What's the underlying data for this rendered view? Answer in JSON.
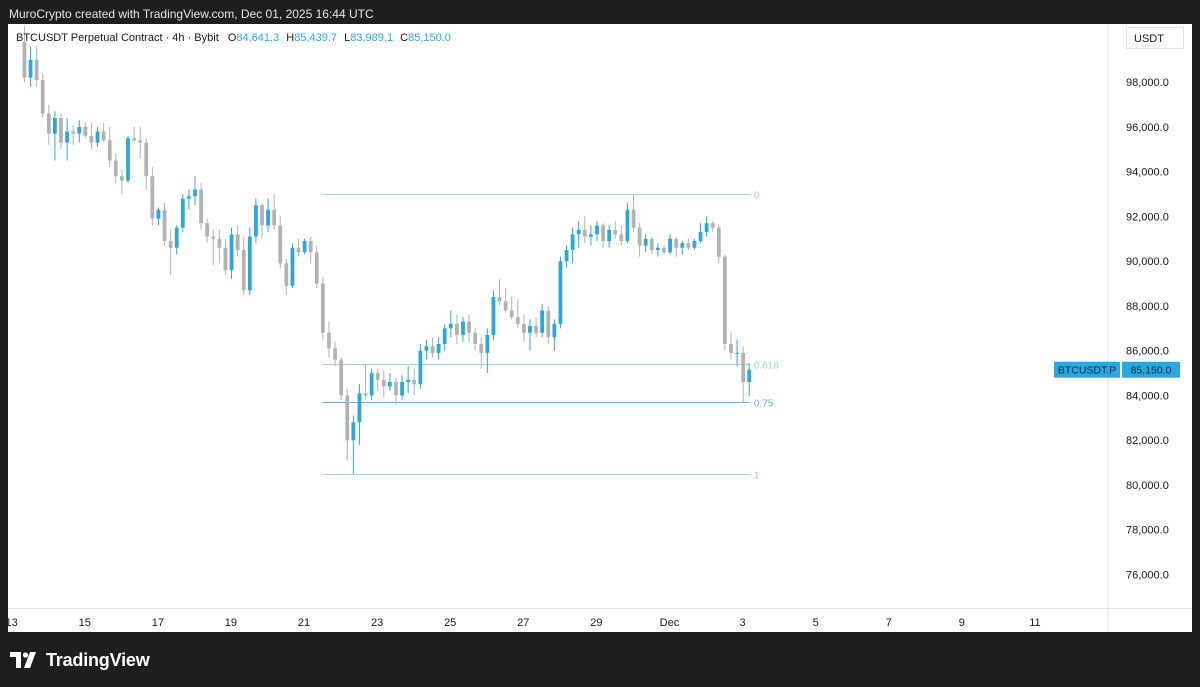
{
  "header": {
    "credit": "MuroCrypto created with TradingView.com, Dec 01, 2025 16:44 UTC"
  },
  "legend": {
    "symbol": "BTCUSDT Perpetual Contract · 4h · Bybit",
    "o_label": "O",
    "o_value": "84,641.3",
    "h_label": "H",
    "h_value": "85,439.7",
    "l_label": "L",
    "l_value": "83,989.1",
    "c_label": "C",
    "c_value": "85,150.0"
  },
  "currency": "USDT",
  "price_tag": {
    "symbol": "BTCUSDT.P",
    "price": "85,150.0"
  },
  "footer": {
    "brand": "TradingView"
  },
  "colors": {
    "up": "#29a8df",
    "down": "#b2b2b2",
    "fib": "#9fd0ec",
    "fib_strong": "#5fb3e0"
  },
  "chart_data": {
    "type": "candlestick",
    "interval": "4h",
    "y_ticks": [
      "98,000.0",
      "96,000.0",
      "94,000.0",
      "92,000.0",
      "90,000.0",
      "88,000.0",
      "86,000.0",
      "84,000.0",
      "82,000.0",
      "80,000.0",
      "78,000.0",
      "76,000.0"
    ],
    "ylim": [
      74500,
      100600
    ],
    "x_ticks": [
      {
        "label": "13",
        "day": 13
      },
      {
        "label": "15",
        "day": 15
      },
      {
        "label": "17",
        "day": 17
      },
      {
        "label": "19",
        "day": 19
      },
      {
        "label": "21",
        "day": 21
      },
      {
        "label": "23",
        "day": 23
      },
      {
        "label": "25",
        "day": 25
      },
      {
        "label": "27",
        "day": 27
      },
      {
        "label": "29",
        "day": 29
      },
      {
        "label": "Dec",
        "day": 31
      },
      {
        "label": "3",
        "day": 33
      },
      {
        "label": "5",
        "day": 35
      },
      {
        "label": "7",
        "day": 37
      },
      {
        "label": "9",
        "day": 39
      },
      {
        "label": "11",
        "day": 41
      }
    ],
    "xlim_days": [
      12.9,
      43.0
    ],
    "fib_levels": [
      {
        "label": "0",
        "price": 93000,
        "from_day": 21.5,
        "to_day": 33.2
      },
      {
        "label": "0.618",
        "price": 85400,
        "from_day": 21.5,
        "to_day": 33.2
      },
      {
        "label": "0.75",
        "price": 83700,
        "from_day": 21.5,
        "to_day": 33.2
      },
      {
        "label": "1",
        "price": 80500,
        "from_day": 21.5,
        "to_day": 33.2
      }
    ],
    "candles": [
      {
        "o": 99800,
        "h": 100500,
        "l": 98000,
        "c": 98200
      },
      {
        "o": 98200,
        "h": 99600,
        "l": 97800,
        "c": 99000
      },
      {
        "o": 99000,
        "h": 99600,
        "l": 97800,
        "c": 98100
      },
      {
        "o": 98100,
        "h": 98400,
        "l": 96400,
        "c": 96600
      },
      {
        "o": 96600,
        "h": 97000,
        "l": 95200,
        "c": 95700
      },
      {
        "o": 95700,
        "h": 96700,
        "l": 94500,
        "c": 96400
      },
      {
        "o": 96400,
        "h": 96600,
        "l": 95000,
        "c": 95300
      },
      {
        "o": 95300,
        "h": 96400,
        "l": 94500,
        "c": 95800
      },
      {
        "o": 95800,
        "h": 96100,
        "l": 95200,
        "c": 95700
      },
      {
        "o": 95700,
        "h": 96300,
        "l": 95300,
        "c": 96000
      },
      {
        "o": 96000,
        "h": 96200,
        "l": 95500,
        "c": 95600
      },
      {
        "o": 95600,
        "h": 96200,
        "l": 95000,
        "c": 95300
      },
      {
        "o": 95300,
        "h": 96000,
        "l": 95100,
        "c": 95800
      },
      {
        "o": 95800,
        "h": 96200,
        "l": 95300,
        "c": 95400
      },
      {
        "o": 95400,
        "h": 96000,
        "l": 94200,
        "c": 94500
      },
      {
        "o": 94500,
        "h": 94800,
        "l": 93500,
        "c": 93800
      },
      {
        "o": 93800,
        "h": 94100,
        "l": 93000,
        "c": 93600
      },
      {
        "o": 93600,
        "h": 95600,
        "l": 93500,
        "c": 95500
      },
      {
        "o": 95500,
        "h": 96000,
        "l": 95300,
        "c": 95400
      },
      {
        "o": 95400,
        "h": 96000,
        "l": 94600,
        "c": 95300
      },
      {
        "o": 95300,
        "h": 95500,
        "l": 93200,
        "c": 93800
      },
      {
        "o": 93800,
        "h": 94200,
        "l": 91600,
        "c": 91900
      },
      {
        "o": 91900,
        "h": 92400,
        "l": 91600,
        "c": 92300
      },
      {
        "o": 92300,
        "h": 92600,
        "l": 90700,
        "c": 90900
      },
      {
        "o": 90900,
        "h": 91400,
        "l": 89400,
        "c": 90600
      },
      {
        "o": 90600,
        "h": 91600,
        "l": 90300,
        "c": 91500
      },
      {
        "o": 91500,
        "h": 93000,
        "l": 91300,
        "c": 92800
      },
      {
        "o": 92800,
        "h": 93200,
        "l": 92300,
        "c": 92900
      },
      {
        "o": 92900,
        "h": 93800,
        "l": 92500,
        "c": 93200
      },
      {
        "o": 93200,
        "h": 93500,
        "l": 91400,
        "c": 91700
      },
      {
        "o": 91700,
        "h": 91900,
        "l": 90800,
        "c": 91100
      },
      {
        "o": 91100,
        "h": 91400,
        "l": 89800,
        "c": 91000
      },
      {
        "o": 91000,
        "h": 91400,
        "l": 89900,
        "c": 90600
      },
      {
        "o": 90600,
        "h": 91000,
        "l": 89400,
        "c": 89600
      },
      {
        "o": 89600,
        "h": 91500,
        "l": 89200,
        "c": 91200
      },
      {
        "o": 91200,
        "h": 91600,
        "l": 90200,
        "c": 90500
      },
      {
        "o": 90500,
        "h": 91100,
        "l": 88500,
        "c": 88700
      },
      {
        "o": 88700,
        "h": 91500,
        "l": 88500,
        "c": 91100
      },
      {
        "o": 91100,
        "h": 92800,
        "l": 90800,
        "c": 92500
      },
      {
        "o": 92500,
        "h": 92600,
        "l": 91000,
        "c": 91600
      },
      {
        "o": 91600,
        "h": 92800,
        "l": 91300,
        "c": 92300
      },
      {
        "o": 92300,
        "h": 93000,
        "l": 91400,
        "c": 91600
      },
      {
        "o": 91600,
        "h": 92000,
        "l": 89700,
        "c": 89900
      },
      {
        "o": 89900,
        "h": 90100,
        "l": 88500,
        "c": 88900
      },
      {
        "o": 88900,
        "h": 90800,
        "l": 88800,
        "c": 90600
      },
      {
        "o": 90600,
        "h": 91000,
        "l": 90200,
        "c": 90400
      },
      {
        "o": 90400,
        "h": 91000,
        "l": 90300,
        "c": 90900
      },
      {
        "o": 90900,
        "h": 91100,
        "l": 89900,
        "c": 90400
      },
      {
        "o": 90400,
        "h": 90700,
        "l": 88800,
        "c": 89000
      },
      {
        "o": 89000,
        "h": 89300,
        "l": 86500,
        "c": 86800
      },
      {
        "o": 86800,
        "h": 87300,
        "l": 85700,
        "c": 86100
      },
      {
        "o": 86100,
        "h": 86400,
        "l": 85300,
        "c": 85600
      },
      {
        "o": 85600,
        "h": 85700,
        "l": 83800,
        "c": 84000
      },
      {
        "o": 84000,
        "h": 84300,
        "l": 81100,
        "c": 82000
      },
      {
        "o": 82000,
        "h": 83100,
        "l": 80500,
        "c": 82800
      },
      {
        "o": 82800,
        "h": 84500,
        "l": 81800,
        "c": 84100
      },
      {
        "o": 84100,
        "h": 85400,
        "l": 83800,
        "c": 84000
      },
      {
        "o": 84000,
        "h": 85200,
        "l": 83800,
        "c": 85000
      },
      {
        "o": 85000,
        "h": 85200,
        "l": 84200,
        "c": 84700
      },
      {
        "o": 84700,
        "h": 85100,
        "l": 83900,
        "c": 84400
      },
      {
        "o": 84400,
        "h": 85000,
        "l": 84200,
        "c": 84600
      },
      {
        "o": 84600,
        "h": 84800,
        "l": 83600,
        "c": 84000
      },
      {
        "o": 84000,
        "h": 84900,
        "l": 83800,
        "c": 84600
      },
      {
        "o": 84600,
        "h": 85300,
        "l": 84100,
        "c": 84700
      },
      {
        "o": 84700,
        "h": 85200,
        "l": 84000,
        "c": 84500
      },
      {
        "o": 84500,
        "h": 86300,
        "l": 84300,
        "c": 86000
      },
      {
        "o": 86000,
        "h": 86500,
        "l": 85600,
        "c": 86200
      },
      {
        "o": 86200,
        "h": 86600,
        "l": 85700,
        "c": 85900
      },
      {
        "o": 85900,
        "h": 86600,
        "l": 85600,
        "c": 86300
      },
      {
        "o": 86300,
        "h": 87200,
        "l": 86000,
        "c": 87000
      },
      {
        "o": 87000,
        "h": 87800,
        "l": 86600,
        "c": 87200
      },
      {
        "o": 87200,
        "h": 87600,
        "l": 86300,
        "c": 86700
      },
      {
        "o": 86700,
        "h": 87500,
        "l": 86400,
        "c": 87300
      },
      {
        "o": 87300,
        "h": 87600,
        "l": 86400,
        "c": 86800
      },
      {
        "o": 86800,
        "h": 87000,
        "l": 86000,
        "c": 86300
      },
      {
        "o": 86300,
        "h": 86600,
        "l": 85200,
        "c": 85900
      },
      {
        "o": 85900,
        "h": 87000,
        "l": 85000,
        "c": 86700
      },
      {
        "o": 86700,
        "h": 88700,
        "l": 86500,
        "c": 88400
      },
      {
        "o": 88400,
        "h": 89200,
        "l": 88000,
        "c": 88200
      },
      {
        "o": 88200,
        "h": 88800,
        "l": 87700,
        "c": 87800
      },
      {
        "o": 87800,
        "h": 88400,
        "l": 87400,
        "c": 87500
      },
      {
        "o": 87500,
        "h": 88300,
        "l": 87000,
        "c": 87200
      },
      {
        "o": 87200,
        "h": 87600,
        "l": 86400,
        "c": 86800
      },
      {
        "o": 86800,
        "h": 87400,
        "l": 86000,
        "c": 87100
      },
      {
        "o": 87100,
        "h": 87500,
        "l": 86600,
        "c": 86800
      },
      {
        "o": 86800,
        "h": 88100,
        "l": 86600,
        "c": 87800
      },
      {
        "o": 87800,
        "h": 88000,
        "l": 86300,
        "c": 86600
      },
      {
        "o": 86600,
        "h": 87400,
        "l": 86000,
        "c": 87200
      },
      {
        "o": 87200,
        "h": 90200,
        "l": 87000,
        "c": 90000
      },
      {
        "o": 90000,
        "h": 90700,
        "l": 89700,
        "c": 90500
      },
      {
        "o": 90500,
        "h": 91500,
        "l": 89900,
        "c": 91200
      },
      {
        "o": 91200,
        "h": 91800,
        "l": 90600,
        "c": 91400
      },
      {
        "o": 91400,
        "h": 92000,
        "l": 90800,
        "c": 91100
      },
      {
        "o": 91100,
        "h": 91600,
        "l": 90700,
        "c": 91200
      },
      {
        "o": 91200,
        "h": 91800,
        "l": 90900,
        "c": 91600
      },
      {
        "o": 91600,
        "h": 91700,
        "l": 90600,
        "c": 90900
      },
      {
        "o": 90900,
        "h": 91600,
        "l": 90600,
        "c": 91400
      },
      {
        "o": 91400,
        "h": 91800,
        "l": 91000,
        "c": 91200
      },
      {
        "o": 91200,
        "h": 91600,
        "l": 90700,
        "c": 90900
      },
      {
        "o": 90900,
        "h": 92600,
        "l": 90800,
        "c": 92300
      },
      {
        "o": 92300,
        "h": 93000,
        "l": 91300,
        "c": 91500
      },
      {
        "o": 91500,
        "h": 91700,
        "l": 90200,
        "c": 90700
      },
      {
        "o": 90700,
        "h": 91200,
        "l": 90400,
        "c": 91000
      },
      {
        "o": 91000,
        "h": 91100,
        "l": 90300,
        "c": 90500
      },
      {
        "o": 90500,
        "h": 90800,
        "l": 90200,
        "c": 90600
      },
      {
        "o": 90600,
        "h": 90700,
        "l": 90300,
        "c": 90400
      },
      {
        "o": 90400,
        "h": 91200,
        "l": 90300,
        "c": 91000
      },
      {
        "o": 91000,
        "h": 91100,
        "l": 90200,
        "c": 90600
      },
      {
        "o": 90600,
        "h": 90900,
        "l": 90300,
        "c": 90800
      },
      {
        "o": 90800,
        "h": 91000,
        "l": 90500,
        "c": 90600
      },
      {
        "o": 90600,
        "h": 91000,
        "l": 90500,
        "c": 90900
      },
      {
        "o": 90900,
        "h": 91700,
        "l": 90800,
        "c": 91300
      },
      {
        "o": 91300,
        "h": 92000,
        "l": 91100,
        "c": 91700
      },
      {
        "o": 91700,
        "h": 91800,
        "l": 91300,
        "c": 91500
      },
      {
        "o": 91500,
        "h": 91600,
        "l": 89900,
        "c": 90200
      },
      {
        "o": 90200,
        "h": 90300,
        "l": 86000,
        "c": 86300
      },
      {
        "o": 86300,
        "h": 86800,
        "l": 85600,
        "c": 85900
      },
      {
        "o": 85900,
        "h": 86500,
        "l": 85300,
        "c": 85900
      },
      {
        "o": 85900,
        "h": 86200,
        "l": 83700,
        "c": 84600
      },
      {
        "o": 84600,
        "h": 85440,
        "l": 83990,
        "c": 85150
      }
    ]
  }
}
